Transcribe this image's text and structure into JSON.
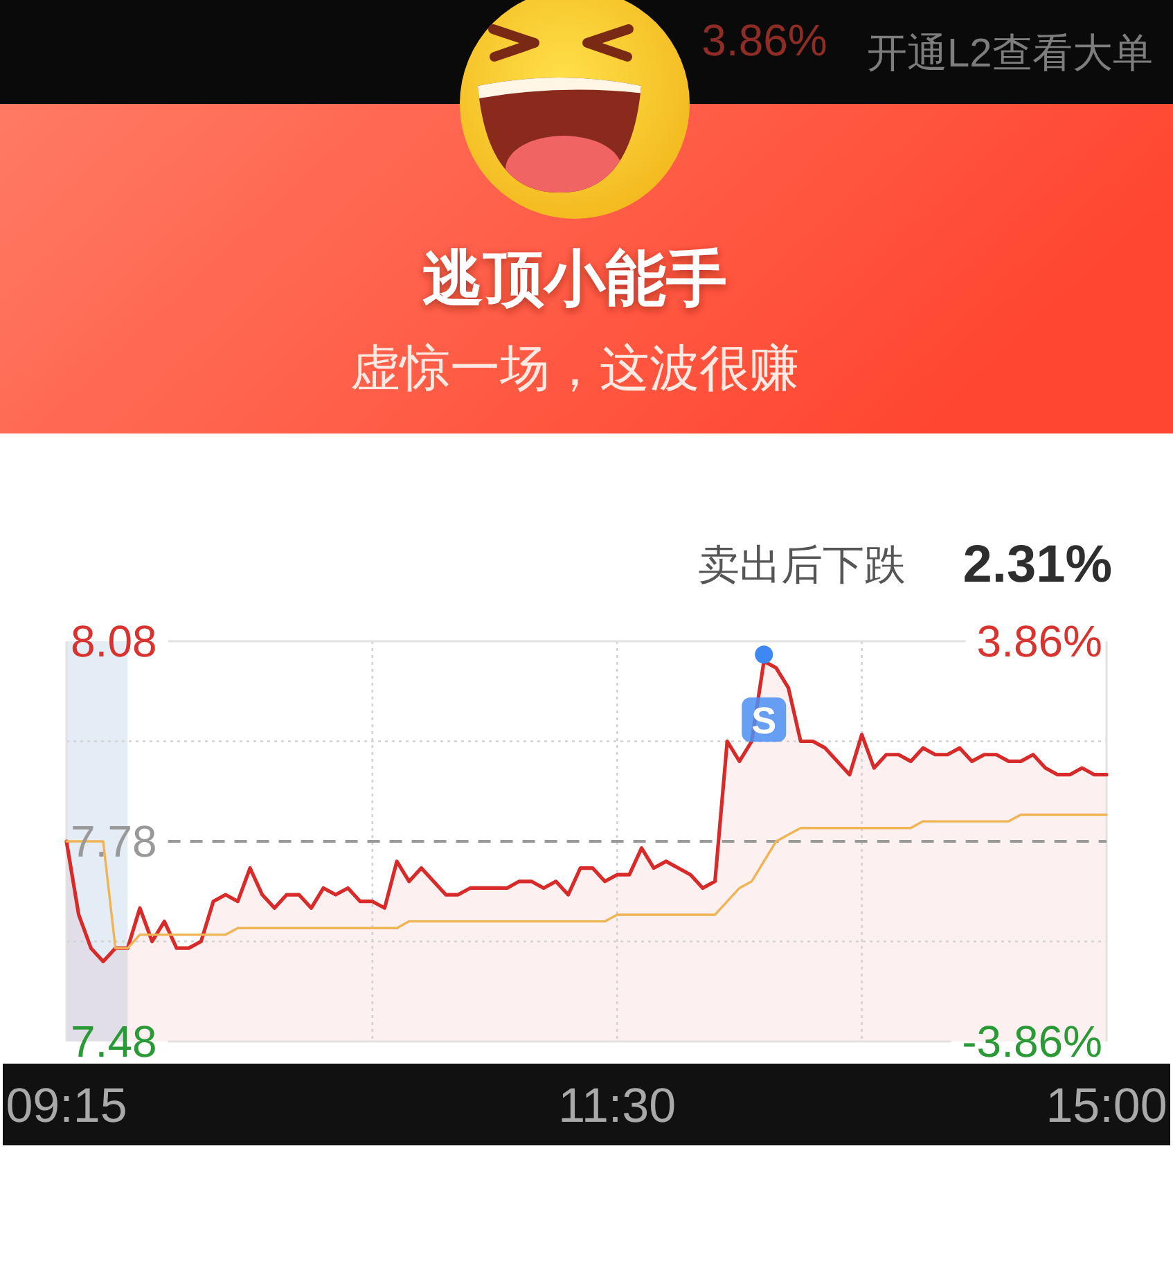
{
  "chart_data": {
    "type": "area",
    "title": "逃顶小能手",
    "subtitle": "虚惊一场，这波很赚",
    "annotations": [
      "3.86%",
      "开通L2查看大单",
      "卖出后下跌",
      "2.31%",
      {
        "text": "S",
        "y": 8.06
      }
    ],
    "categories": [
      "09:15",
      null,
      null,
      null,
      null,
      null,
      null,
      null,
      null,
      null,
      null,
      null,
      null,
      null,
      null,
      null,
      null,
      null,
      null,
      null,
      null,
      null,
      null,
      null,
      null,
      null,
      null,
      null,
      null,
      null,
      null,
      null,
      null,
      null,
      null,
      null,
      null,
      null,
      null,
      null,
      null,
      null,
      null,
      null,
      null,
      "11:30",
      null,
      null,
      null,
      null,
      null,
      null,
      null,
      null,
      null,
      null,
      null,
      null,
      null,
      null,
      null,
      null,
      null,
      null,
      null,
      null,
      null,
      null,
      null,
      null,
      null,
      null,
      null,
      null,
      null,
      null,
      null,
      null,
      null,
      null,
      null,
      null,
      null,
      null,
      null,
      "15:00"
    ],
    "ylim": [
      7.48,
      8.08
    ],
    "yticks": [
      7.48,
      {
        "value": 7.63,
        "label": null
      },
      7.78,
      {
        "value": 7.93,
        "label": null
      },
      8.08
    ],
    "y2lim": [
      -3.86,
      3.86
    ],
    "y2ticks": [
      {
        "value": -3.86,
        "label": "-3.86%"
      },
      {
        "value": 3.86,
        "label": "3.86%"
      }
    ],
    "grid": true,
    "ref_lines": [
      {
        "axis": "y",
        "value": 7.78,
        "color": "#9a9a9a",
        "line_style": "dashed"
      }
    ],
    "series": [
      {
        "color": "#d92a2a",
        "values": [
          7.78,
          7.67,
          7.62,
          7.6,
          7.62,
          7.62,
          7.68,
          7.63,
          7.66,
          7.62,
          7.62,
          7.63,
          7.69,
          7.7,
          7.69,
          7.74,
          7.7,
          7.68,
          7.7,
          7.7,
          7.68,
          7.71,
          7.7,
          7.71,
          7.69,
          7.69,
          7.68,
          7.75,
          7.72,
          7.74,
          7.72,
          7.7,
          7.7,
          7.71,
          7.71,
          7.71,
          7.71,
          7.72,
          7.72,
          7.71,
          7.72,
          7.7,
          7.74,
          7.74,
          7.72,
          7.73,
          7.73,
          7.77,
          7.74,
          7.75,
          7.74,
          7.73,
          7.71,
          7.72,
          7.93,
          7.9,
          7.93,
          8.05,
          8.04,
          8.01,
          7.93,
          7.93,
          7.92,
          7.9,
          7.88,
          7.94,
          7.89,
          7.91,
          7.91,
          7.9,
          7.92,
          7.91,
          7.91,
          7.92,
          7.9,
          7.91,
          7.91,
          7.9,
          7.9,
          7.91,
          7.89,
          7.88,
          7.88,
          7.89,
          7.88,
          7.88
        ]
      },
      {
        "type": "line",
        "color": "#f0b454",
        "values": [
          7.78,
          7.78,
          7.78,
          7.78,
          7.62,
          7.62,
          7.64,
          7.64,
          7.64,
          7.64,
          7.64,
          7.64,
          7.64,
          7.64,
          7.65,
          7.65,
          7.65,
          7.65,
          7.65,
          7.65,
          7.65,
          7.65,
          7.65,
          7.65,
          7.65,
          7.65,
          7.65,
          7.65,
          7.66,
          7.66,
          7.66,
          7.66,
          7.66,
          7.66,
          7.66,
          7.66,
          7.66,
          7.66,
          7.66,
          7.66,
          7.66,
          7.66,
          7.66,
          7.66,
          7.66,
          7.67,
          7.67,
          7.67,
          7.67,
          7.67,
          7.67,
          7.67,
          7.67,
          7.67,
          7.69,
          7.71,
          7.72,
          7.75,
          7.78,
          7.79,
          7.8,
          7.8,
          7.8,
          7.8,
          7.8,
          7.8,
          7.8,
          7.8,
          7.8,
          7.8,
          7.81,
          7.81,
          7.81,
          7.81,
          7.81,
          7.81,
          7.81,
          7.81,
          7.82,
          7.82,
          7.82,
          7.82,
          7.82,
          7.82,
          7.82,
          7.82
        ]
      }
    ]
  }
}
